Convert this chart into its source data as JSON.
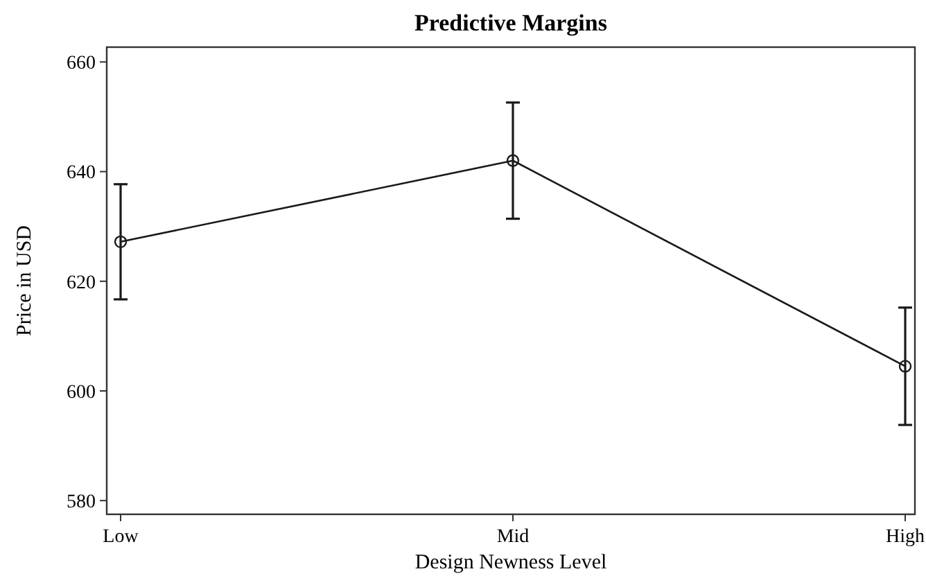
{
  "chart_data": {
    "type": "line",
    "title": "Predictive Margins",
    "xlabel": "Design Newness Level",
    "ylabel": "Price in USD",
    "categories": [
      "Low",
      "Mid",
      "High"
    ],
    "series": [
      {
        "color": "#1a1a1a",
        "values": [
          627.2,
          642,
          604.5
        ],
        "errors": [
          10.5,
          10.6,
          10.7
        ]
      }
    ],
    "ylim": [
      577.5,
      662.7
    ],
    "yticks": [
      580,
      600,
      620,
      640,
      660
    ],
    "grid": false,
    "marker": "circle",
    "line_style": "solid"
  }
}
